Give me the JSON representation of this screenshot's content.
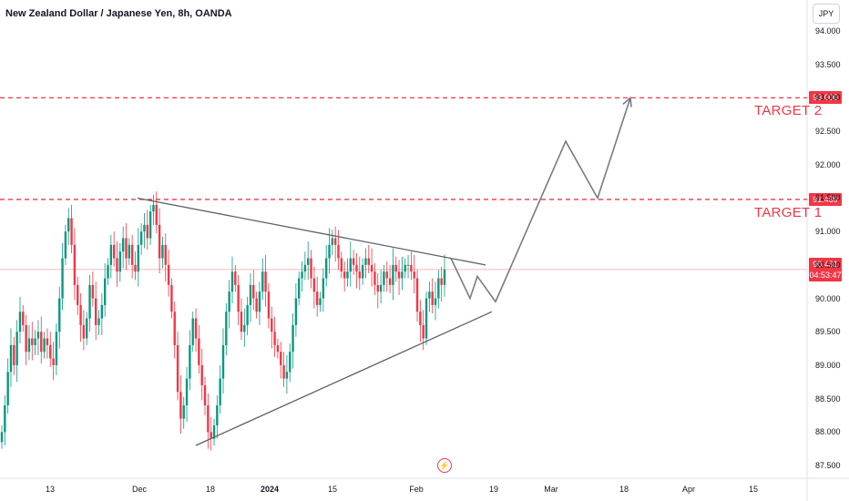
{
  "header": {
    "title": "New Zealand Dollar / Japanese Yen, 8h, OANDA"
  },
  "currency_button": {
    "label": "JPY"
  },
  "targets": [
    {
      "label": "TARGET 2",
      "price": "93.000"
    },
    {
      "label": "TARGET 1",
      "price": "91.480"
    }
  ],
  "current_price": {
    "price": "90.431",
    "countdown": "04:53:47"
  },
  "event_icon": {
    "name": "lightning-icon"
  },
  "colors": {
    "up_candle": "#089981",
    "down_candle": "#f23645",
    "target_line": "#f23645",
    "pattern_lines": "#5d606b",
    "projection": "#787b86"
  },
  "chart_data": {
    "type": "candlestick",
    "title": "New Zealand Dollar / Japanese Yen, 8h, OANDA",
    "y_axis": {
      "currency": "JPY",
      "ylim": [
        87.4,
        94.1
      ],
      "ticks": [
        "94.000",
        "93.500",
        "93.000",
        "92.500",
        "92.000",
        "91.500",
        "91.000",
        "90.500",
        "90.000",
        "89.500",
        "89.000",
        "88.500",
        "88.000",
        "87.500"
      ]
    },
    "x_axis": {
      "ticks": [
        {
          "label": "13",
          "bold": false
        },
        {
          "label": "Dec",
          "bold": false
        },
        {
          "label": "18",
          "bold": false
        },
        {
          "label": "2024",
          "bold": true
        },
        {
          "label": "15",
          "bold": false
        },
        {
          "label": "Feb",
          "bold": false
        },
        {
          "label": "19",
          "bold": false
        },
        {
          "label": "Mar",
          "bold": false
        },
        {
          "label": "18",
          "bold": false
        },
        {
          "label": "Apr",
          "bold": false
        },
        {
          "label": "15",
          "bold": false
        }
      ]
    },
    "price_closes": [
      88.0,
      88.4,
      88.9,
      89.3,
      89.0,
      89.5,
      89.8,
      89.6,
      89.2,
      89.4,
      89.3,
      89.4,
      89.5,
      89.2,
      89.4,
      89.3,
      89.1,
      89.0,
      89.5,
      90.0,
      90.6,
      91.0,
      91.2,
      90.8,
      90.2,
      89.9,
      89.6,
      89.4,
      89.7,
      90.2,
      90.0,
      89.6,
      89.7,
      89.9,
      90.3,
      90.5,
      90.8,
      90.6,
      90.4,
      90.7,
      90.9,
      90.6,
      90.8,
      90.5,
      90.4,
      90.8,
      91.0,
      91.1,
      90.9,
      91.3,
      91.4,
      91.1,
      90.6,
      90.8,
      90.5,
      90.2,
      89.8,
      89.3,
      88.6,
      88.2,
      88.4,
      88.8,
      89.3,
      89.7,
      89.4,
      89.0,
      88.7,
      88.4,
      88.0,
      87.9,
      88.1,
      88.4,
      88.8,
      89.3,
      89.8,
      90.1,
      90.4,
      90.2,
      89.8,
      89.5,
      89.6,
      89.9,
      90.2,
      90.0,
      89.8,
      90.1,
      90.4,
      90.1,
      89.7,
      89.5,
      89.3,
      89.2,
      89.0,
      88.8,
      88.9,
      89.2,
      89.6,
      90.0,
      90.3,
      90.4,
      90.5,
      90.6,
      90.3,
      90.1,
      89.9,
      90.0,
      90.3,
      90.6,
      90.8,
      90.9,
      90.8,
      90.6,
      90.4,
      90.3,
      90.4,
      90.6,
      90.5,
      90.4,
      90.3,
      90.5,
      90.6,
      90.5,
      90.4,
      90.2,
      90.1,
      90.2,
      90.4,
      90.3,
      90.2,
      90.5,
      90.4,
      90.3,
      90.4,
      90.5,
      90.5,
      90.4,
      90.3,
      89.8,
      89.6,
      89.4,
      90.0,
      90.1,
      89.9,
      90.0,
      90.3,
      90.2,
      90.431
    ],
    "current_price": 90.431,
    "triangle": {
      "upper_line": [
        {
          "date": "Nov 30",
          "price": 91.5
        },
        {
          "date": "Feb 15",
          "price": 90.5
        }
      ],
      "lower_line": [
        {
          "date": "Dec 15",
          "price": 87.8
        },
        {
          "date": "Feb 17",
          "price": 89.8
        }
      ]
    },
    "projection_path_prices": [
      90.6,
      90.0,
      90.33,
      89.95,
      92.35,
      91.5,
      93.0
    ],
    "target_levels": [
      {
        "label": "TARGET 2",
        "value": 93.0
      },
      {
        "label": "TARGET 1",
        "value": 91.48
      }
    ],
    "grid": false,
    "legend": "none"
  }
}
